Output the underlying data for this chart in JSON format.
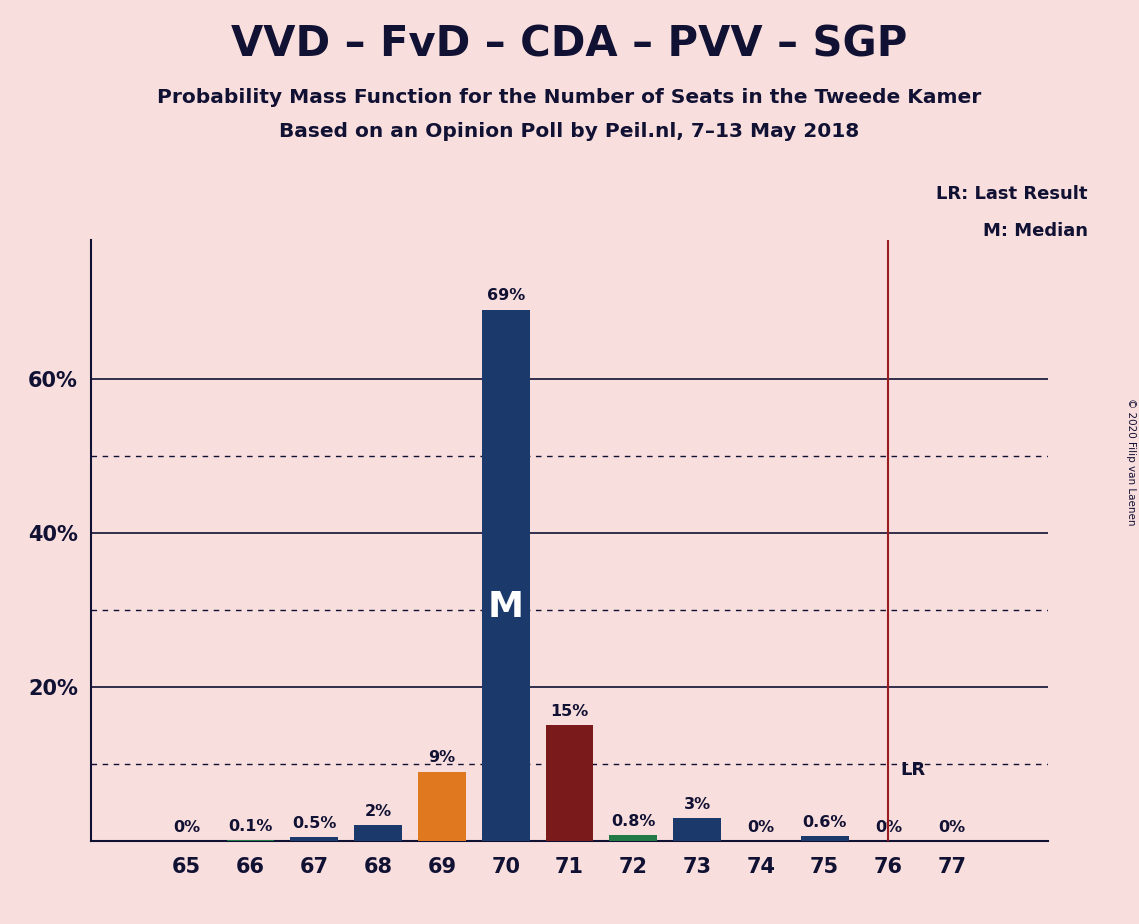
{
  "title": "VVD – FvD – CDA – PVV – SGP",
  "subtitle1": "Probability Mass Function for the Number of Seats in the Tweede Kamer",
  "subtitle2": "Based on an Opinion Poll by Peil.nl, 7–13 May 2018",
  "copyright": "© 2020 Filip van Laenen",
  "seats": [
    65,
    66,
    67,
    68,
    69,
    70,
    71,
    72,
    73,
    74,
    75,
    76,
    77
  ],
  "probabilities": [
    0.0,
    0.1,
    0.5,
    2.0,
    9.0,
    69.0,
    15.0,
    0.8,
    3.0,
    0.0,
    0.6,
    0.0,
    0.0
  ],
  "bar_colors": [
    "#1b3a6b",
    "#217a45",
    "#1b3a6b",
    "#1b3a6b",
    "#e07820",
    "#1b3a6b",
    "#7b1a1a",
    "#217a45",
    "#1b3a6b",
    "#1b3a6b",
    "#1b3a6b",
    "#1b3a6b",
    "#1b3a6b"
  ],
  "median_seat": 70,
  "last_result_seat": 76,
  "median_label": "M",
  "lr_label": "LR",
  "legend_lr": "LR: Last Result",
  "legend_m": "M: Median",
  "background_color": "#f9dede",
  "lr_line_color": "#9b1c1c",
  "median_text_color": "#ffffff",
  "solid_yticks": [
    20,
    40,
    60
  ],
  "dotted_yticks": [
    10,
    30,
    50
  ],
  "ylim": [
    0,
    78
  ],
  "xlim_left": 63.5,
  "xlim_right": 78.5
}
